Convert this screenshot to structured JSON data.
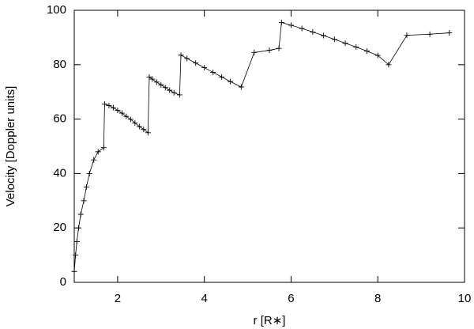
{
  "chart_data": {
    "type": "line",
    "xlabel": "r [R∗]",
    "ylabel": "Velocity [Doppler units]",
    "xlim": [
      1,
      10
    ],
    "ylim": [
      0,
      100
    ],
    "xticks": [
      2,
      4,
      6,
      8,
      10
    ],
    "yticks": [
      0,
      20,
      40,
      60,
      80,
      100
    ],
    "color": "#000000",
    "marker": "+",
    "x": [
      1.0,
      1.03,
      1.06,
      1.1,
      1.15,
      1.22,
      1.28,
      1.35,
      1.45,
      1.55,
      1.68,
      1.7,
      1.8,
      1.9,
      2.0,
      2.1,
      2.2,
      2.3,
      2.4,
      2.5,
      2.6,
      2.7,
      2.73,
      2.8,
      2.9,
      3.0,
      3.1,
      3.2,
      3.3,
      3.43,
      3.46,
      3.6,
      3.8,
      4.0,
      4.2,
      4.4,
      4.6,
      4.85,
      5.15,
      5.5,
      5.72,
      5.78,
      6.0,
      6.25,
      6.5,
      6.75,
      7.0,
      7.25,
      7.5,
      7.75,
      8.0,
      8.25,
      8.67,
      9.2,
      9.65
    ],
    "values": [
      4,
      10,
      15,
      20,
      25,
      30,
      35,
      40,
      45,
      48,
      49.5,
      65.5,
      65,
      64.2,
      63.2,
      62.2,
      61,
      59.9,
      58.6,
      57.3,
      56.2,
      55,
      75.5,
      74.7,
      73.6,
      72.6,
      71.6,
      70.6,
      69.7,
      68.9,
      83.5,
      82.3,
      80.6,
      78.9,
      77.2,
      75.5,
      73.8,
      71.8,
      84.5,
      85.3,
      86,
      95.5,
      94.5,
      93.3,
      92,
      90.7,
      89.3,
      87.9,
      86.5,
      85,
      83.4,
      80,
      90.8,
      91.2,
      91.7
    ]
  }
}
